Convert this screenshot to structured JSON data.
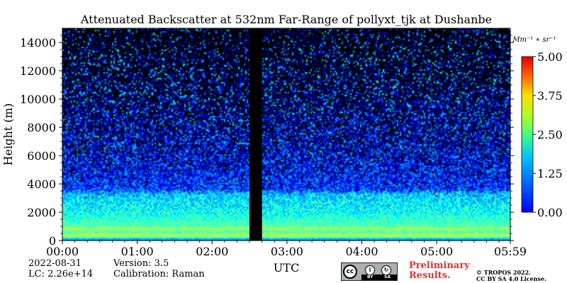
{
  "chart_data": {
    "type": "heatmap",
    "title": "Attenuated Backscatter at 532nm Far-Range of pollyxt_tjk at Dushanbe",
    "xlabel": "UTC",
    "ylabel": "Height (m)",
    "xlim": [
      "00:00",
      "05:59"
    ],
    "x_ticks": [
      "00:00",
      "01:00",
      "02:00",
      "03:00",
      "04:00",
      "05:00",
      "05:59"
    ],
    "ylim": [
      0,
      15000
    ],
    "y_ticks": [
      0,
      2000,
      4000,
      6000,
      8000,
      10000,
      12000,
      14000
    ],
    "colorbar": {
      "unit": "Mm⁻¹ ∗ sr⁻¹",
      "range": [
        0.0,
        5.0
      ],
      "ticks": [
        "0.00",
        "1.25",
        "2.50",
        "3.75",
        "5.00"
      ],
      "colormap": "jet"
    },
    "data_gap": {
      "from": "02:30",
      "to": "02:40"
    },
    "profile": [
      {
        "height": 100,
        "value": 1.3
      },
      {
        "height": 300,
        "value": 2.9
      },
      {
        "height": 600,
        "value": 2.2
      },
      {
        "height": 800,
        "value": 2.7
      },
      {
        "height": 1000,
        "value": 2.3
      },
      {
        "height": 1500,
        "value": 2.1
      },
      {
        "height": 2000,
        "value": 1.9
      },
      {
        "height": 2600,
        "value": 1.8
      },
      {
        "height": 3300,
        "value": 1.6
      },
      {
        "height": 3600,
        "value": 0.95
      },
      {
        "height": 4500,
        "value": 0.75
      },
      {
        "height": 6000,
        "value": 0.6
      },
      {
        "height": 8000,
        "value": 0.45
      },
      {
        "height": 10000,
        "value": 0.35
      },
      {
        "height": 12000,
        "value": 0.3
      },
      {
        "height": 15000,
        "value": 0.25
      }
    ]
  },
  "info": {
    "date": "2022-08-31",
    "lc": "LC: 2.26e+14",
    "version": "Version: 3.5",
    "calibration": "Calibration: Raman",
    "preliminary_line1": "Preliminary",
    "preliminary_line2": "Results.",
    "copyright_line1": "© TROPOS 2022.",
    "copyright_line2": "CC BY SA 4.0 License."
  },
  "license_badge": {
    "cc": "cc",
    "by": "BY",
    "sa": "SA"
  },
  "colors": {
    "preliminary": "#e8302e",
    "badge_grey": "#aab0ad"
  }
}
